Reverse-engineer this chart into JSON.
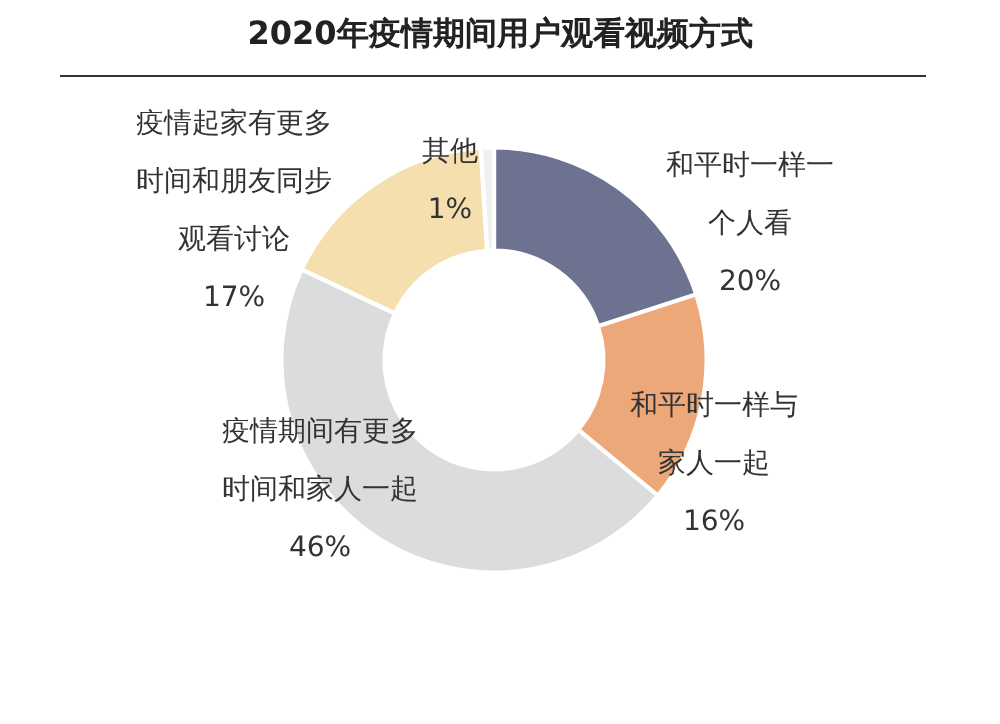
{
  "chart_data": {
    "type": "donut",
    "title": "2020年疫情期间用户观看视频方式",
    "categories": [
      "和平时一样一个人看",
      "和平时一样与家人一起",
      "疫情期间有更多时间和家人一起",
      "疫情起家有更多时间和朋友同步观看讨论",
      "其他"
    ],
    "values": [
      20,
      16,
      46,
      17,
      1
    ],
    "value_labels": [
      "20%",
      "16%",
      "46%",
      "17%",
      "1%"
    ],
    "colors": [
      "#6c7290",
      "#eda879",
      "#dcdcdc",
      "#f6dfae",
      "#f0f0f0"
    ]
  }
}
